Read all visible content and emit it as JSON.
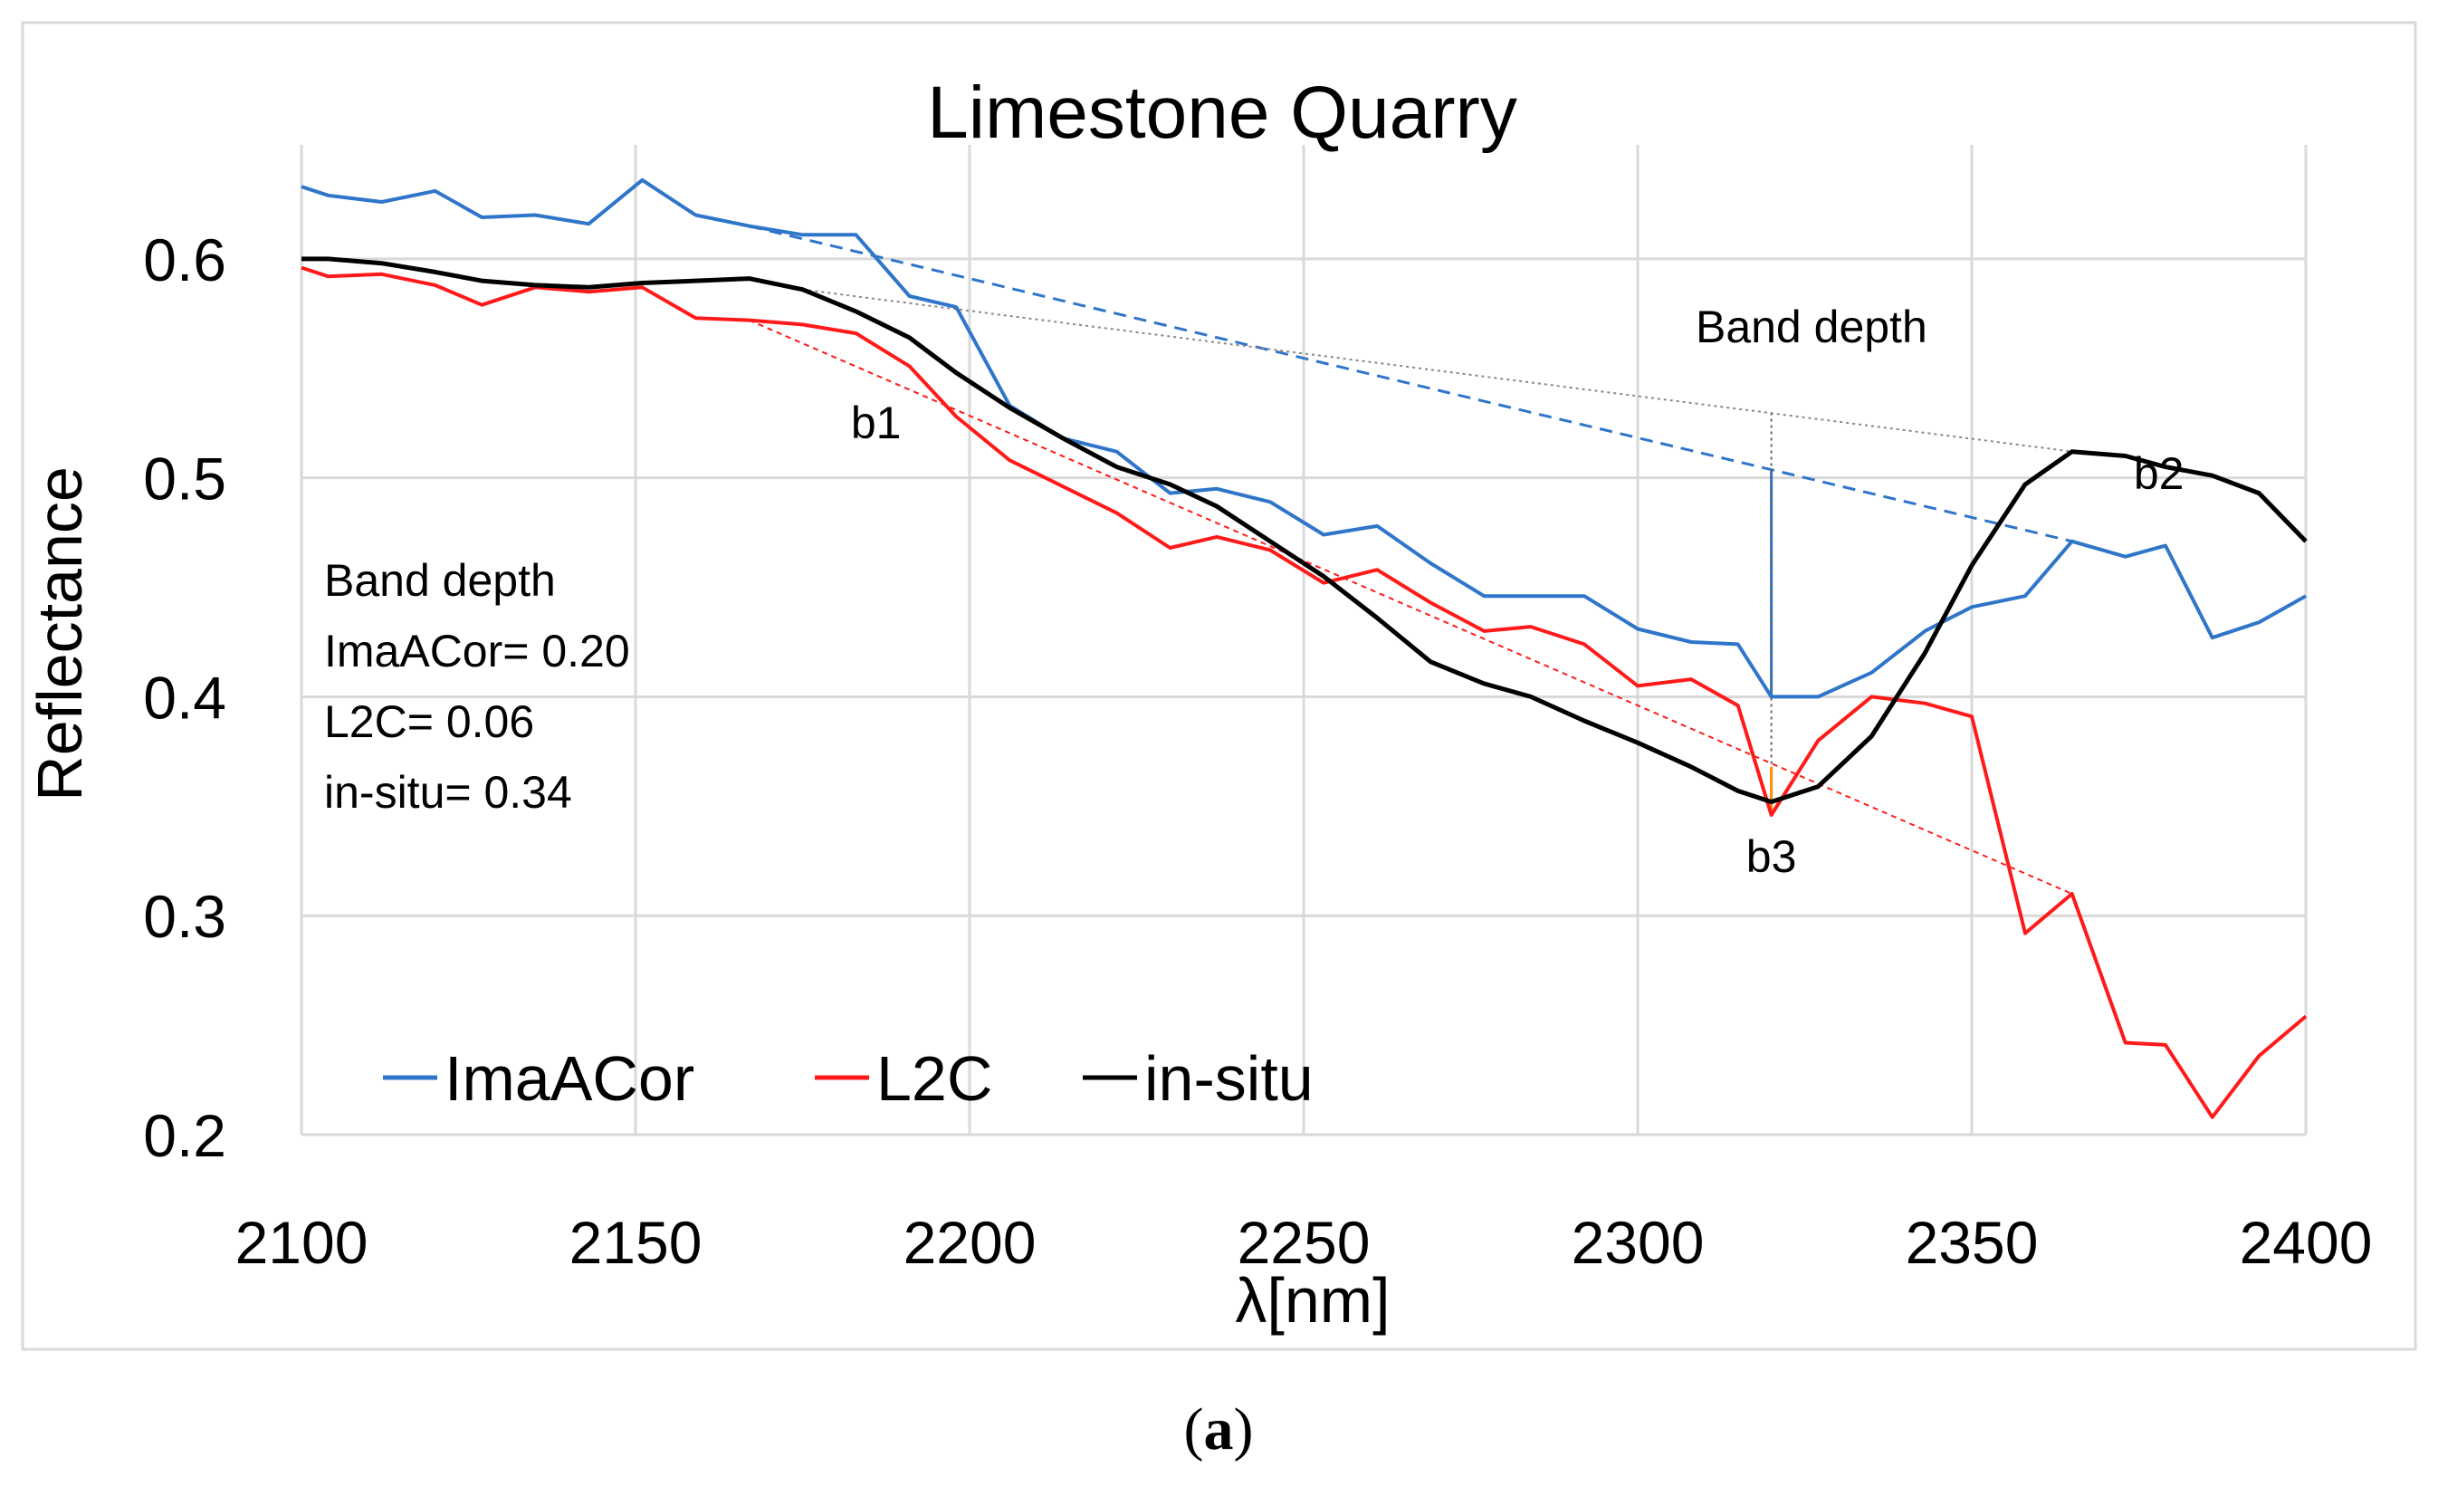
{
  "chart_data": {
    "type": "line",
    "title": "Limestone Quarry",
    "xlabel": "λ[nm]",
    "ylabel": "Reflectance",
    "xlim": [
      2100,
      2400
    ],
    "ylim": [
      0.2,
      0.65
    ],
    "xticks": [
      2100,
      2150,
      2200,
      2250,
      2300,
      2350,
      2400
    ],
    "yticks": [
      0.2,
      0.3,
      0.4,
      0.5,
      0.6
    ],
    "ytick_labels": [
      "0.2",
      "0.3",
      "0.4",
      "0.5",
      "0.6"
    ],
    "grid": "horizontal",
    "legend_position": "bottom-left",
    "series": [
      {
        "name": "ImaACor",
        "color": "#2f75c9",
        "x": [
          2100,
          2104,
          2112,
          2120,
          2127,
          2135,
          2143,
          2151,
          2159,
          2167,
          2175,
          2183,
          2191,
          2198,
          2206,
          2214,
          2222,
          2230,
          2237,
          2245,
          2253,
          2261,
          2269,
          2277,
          2284,
          2292,
          2300,
          2308,
          2315,
          2320,
          2327,
          2335,
          2343,
          2350,
          2358,
          2365,
          2373,
          2379,
          2386,
          2393,
          2400
        ],
        "values": [
          0.633,
          0.629,
          0.626,
          0.631,
          0.619,
          0.62,
          0.616,
          0.636,
          0.62,
          0.615,
          0.611,
          0.611,
          0.583,
          0.578,
          0.533,
          0.518,
          0.512,
          0.493,
          0.495,
          0.489,
          0.474,
          0.478,
          0.461,
          0.446,
          0.446,
          0.446,
          0.431,
          0.425,
          0.424,
          0.4,
          0.4,
          0.411,
          0.43,
          0.441,
          0.446,
          0.471,
          0.464,
          0.469,
          0.427,
          0.434,
          0.446
        ]
      },
      {
        "name": "L2C",
        "color": "#ff1a1a",
        "x": [
          2100,
          2104,
          2112,
          2120,
          2127,
          2135,
          2143,
          2151,
          2159,
          2167,
          2175,
          2183,
          2191,
          2198,
          2206,
          2214,
          2222,
          2230,
          2237,
          2245,
          2253,
          2261,
          2269,
          2277,
          2284,
          2292,
          2300,
          2308,
          2315,
          2320,
          2327,
          2335,
          2343,
          2350,
          2358,
          2365,
          2373,
          2379,
          2386,
          2393,
          2400
        ],
        "values": [
          0.596,
          0.592,
          0.593,
          0.588,
          0.579,
          0.587,
          0.585,
          0.587,
          0.573,
          0.572,
          0.57,
          0.566,
          0.551,
          0.528,
          0.508,
          0.496,
          0.484,
          0.468,
          0.473,
          0.467,
          0.452,
          0.458,
          0.443,
          0.43,
          0.432,
          0.424,
          0.405,
          0.408,
          0.396,
          0.346,
          0.38,
          0.4,
          0.397,
          0.391,
          0.292,
          0.31,
          0.242,
          0.241,
          0.208,
          0.236,
          0.254
        ]
      },
      {
        "name": "in-situ",
        "color": "#000000",
        "x": [
          2100,
          2104,
          2112,
          2120,
          2127,
          2135,
          2143,
          2151,
          2159,
          2167,
          2175,
          2183,
          2191,
          2198,
          2206,
          2214,
          2222,
          2230,
          2237,
          2245,
          2253,
          2261,
          2269,
          2277,
          2284,
          2292,
          2300,
          2308,
          2315,
          2320,
          2327,
          2335,
          2343,
          2350,
          2358,
          2365,
          2373,
          2379,
          2386,
          2393,
          2400
        ],
        "values": [
          0.6,
          0.6,
          0.598,
          0.594,
          0.59,
          0.588,
          0.587,
          0.589,
          0.59,
          0.591,
          0.586,
          0.576,
          0.564,
          0.548,
          0.532,
          0.518,
          0.505,
          0.497,
          0.487,
          0.471,
          0.455,
          0.436,
          0.416,
          0.406,
          0.4,
          0.389,
          0.379,
          0.368,
          0.357,
          0.352,
          0.359,
          0.382,
          0.42,
          0.46,
          0.497,
          0.512,
          0.51,
          0.505,
          0.501,
          0.493,
          0.471
        ]
      }
    ],
    "continuum_lines": [
      {
        "name": "ImaACor continuum",
        "color": "#2f75c9",
        "style": "dashed",
        "x": [
          2167,
          2365
        ],
        "values": [
          0.615,
          0.471
        ]
      },
      {
        "name": "L2C continuum",
        "color": "#ff1a1a",
        "style": "dashed",
        "x": [
          2167,
          2365
        ],
        "values": [
          0.572,
          0.31
        ]
      },
      {
        "name": "in-situ continuum",
        "color": "#888888",
        "style": "dotted",
        "x": [
          2175,
          2365
        ],
        "values": [
          0.586,
          0.512
        ]
      }
    ],
    "band_depth_markers": [
      {
        "name": "ImaACor band depth",
        "color": "#2f75c9",
        "x": 2320,
        "from": 0.4,
        "to": 0.503
      },
      {
        "name": "in-situ band depth",
        "color": "#666666",
        "x": 2320,
        "from": 0.352,
        "to": 0.53
      },
      {
        "name": "L2C band depth",
        "color": "#ff8c00",
        "x": 2320,
        "from": 0.346,
        "to": 0.368
      }
    ],
    "annotations": [
      {
        "key": "b1",
        "text": "b1",
        "x": 2186,
        "y": 0.518
      },
      {
        "key": "b2",
        "text": "b2",
        "x": 2378,
        "y": 0.495
      },
      {
        "key": "b3",
        "text": "b3",
        "x": 2320,
        "y": 0.32
      },
      {
        "key": "band_depth_top",
        "text": "Band depth",
        "x": 2326,
        "y": 0.562
      }
    ],
    "band_depth_box": [
      "Band depth",
      "ImaACor= 0.20",
      "L2C= 0.06",
      "in-situ= 0.34"
    ]
  },
  "caption": {
    "open": "(",
    "letter": "a",
    "close": ")"
  }
}
